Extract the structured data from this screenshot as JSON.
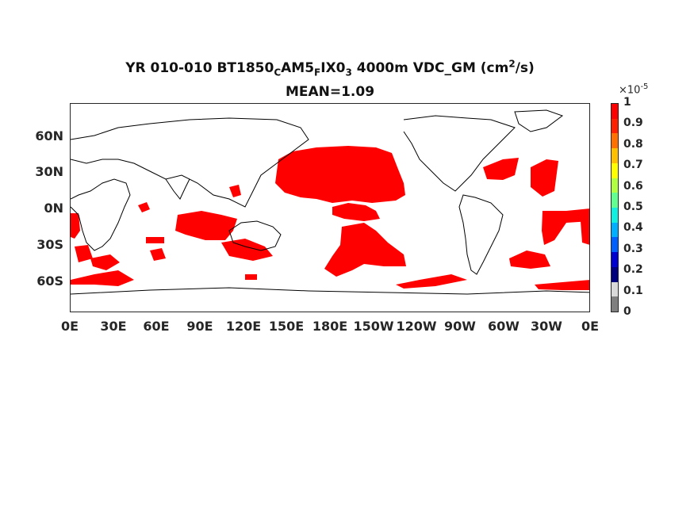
{
  "figure": {
    "title_line1": {
      "prefix": "YR 010-010 BT1850",
      "sub1": "C",
      "mid1": "AM5",
      "sub2": "F",
      "mid2": "IX0",
      "sub3": "3",
      "mid3": " 4000m VDC_GM (cm",
      "sup": "2",
      "suffix": "/s)"
    },
    "title_line2": "MEAN=1.09"
  },
  "axes": {
    "y_ticks": [
      "60N",
      "30N",
      "0N",
      "30S",
      "60S"
    ],
    "x_ticks": [
      "0E",
      "30E",
      "60E",
      "90E",
      "120E",
      "150E",
      "180E",
      "150W",
      "120W",
      "90W",
      "60W",
      "30W",
      "0E"
    ]
  },
  "colorbar": {
    "multiplier_base": "×10",
    "multiplier_exp": "-5",
    "ticks": [
      "1",
      "0.9",
      "0.8",
      "0.7",
      "0.6",
      "0.5",
      "0.4",
      "0.3",
      "0.2",
      "0.1",
      "0"
    ],
    "colors": [
      "#7f7f7f",
      "#d9d9d9",
      "#00007f",
      "#0000d0",
      "#0060ff",
      "#00b0ff",
      "#10f0e0",
      "#60ff90",
      "#b0ff40",
      "#ffff00",
      "#ffc000",
      "#ff7000",
      "#ff2000",
      "#ff0000"
    ]
  },
  "map_style": {
    "field_color": "#ff0000",
    "coast_color": "#000000"
  }
}
